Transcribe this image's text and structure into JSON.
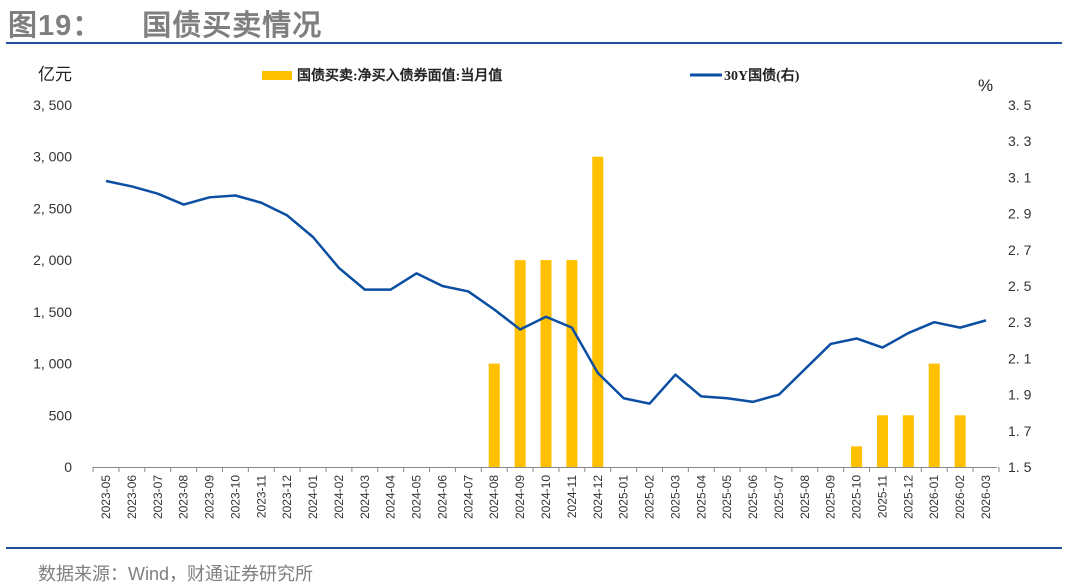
{
  "header": {
    "figure_no": "图19：",
    "title": "国债买卖情况"
  },
  "source": "数据来源：Wind，财通证券研究所",
  "chart_data": {
    "type": "bar+line",
    "left_unit": "亿元",
    "right_unit": "%",
    "categories": [
      "2023-05",
      "2023-06",
      "2023-07",
      "2023-08",
      "2023-09",
      "2023-10",
      "2023-11",
      "2023-12",
      "2024-01",
      "2024-02",
      "2024-03",
      "2024-04",
      "2024-05",
      "2024-06",
      "2024-07",
      "2024-08",
      "2024-09",
      "2024-10",
      "2024-11",
      "2024-12",
      "2025-01",
      "2025-02",
      "2025-03",
      "2025-04",
      "2025-05",
      "2025-06",
      "2025-07",
      "2025-08",
      "2025-09",
      "2025-10",
      "2025-11",
      "2025-12",
      "2026-01",
      "2026-02",
      "2026-03"
    ],
    "left_ylim": [
      0,
      3500
    ],
    "left_ticks": [
      "0",
      "500",
      "1, 000",
      "1, 500",
      "2, 000",
      "2, 500",
      "3, 000",
      "3, 500"
    ],
    "right_ylim": [
      1.5,
      3.5
    ],
    "right_ticks": [
      "1. 5",
      "1. 7",
      "1. 9",
      "2. 1",
      "2. 3",
      "2. 5",
      "2. 7",
      "2. 9",
      "3. 1",
      "3. 3",
      "3. 5"
    ],
    "legend_position": "top",
    "series": [
      {
        "name": "国债买卖:净买入债券面值:当月值",
        "type": "bar",
        "axis": "left",
        "color": "#FFC000",
        "values": [
          null,
          null,
          null,
          null,
          null,
          null,
          null,
          null,
          null,
          null,
          null,
          null,
          null,
          null,
          null,
          1000,
          2000,
          2000,
          2000,
          3000,
          null,
          null,
          null,
          null,
          null,
          null,
          null,
          null,
          null,
          200,
          500,
          500,
          1000,
          500,
          null
        ]
      },
      {
        "name": "30Y国债(右)",
        "type": "line",
        "axis": "right",
        "color": "#0B4EA2",
        "values": [
          3.08,
          3.05,
          3.01,
          2.95,
          2.99,
          3.0,
          2.96,
          2.89,
          2.77,
          2.6,
          2.48,
          2.48,
          2.57,
          2.5,
          2.47,
          2.37,
          2.26,
          2.33,
          2.27,
          2.02,
          1.88,
          1.85,
          2.01,
          1.89,
          1.88,
          1.86,
          1.9,
          2.04,
          2.18,
          2.21,
          2.16,
          2.24,
          2.3,
          2.27,
          2.31
        ]
      }
    ]
  }
}
